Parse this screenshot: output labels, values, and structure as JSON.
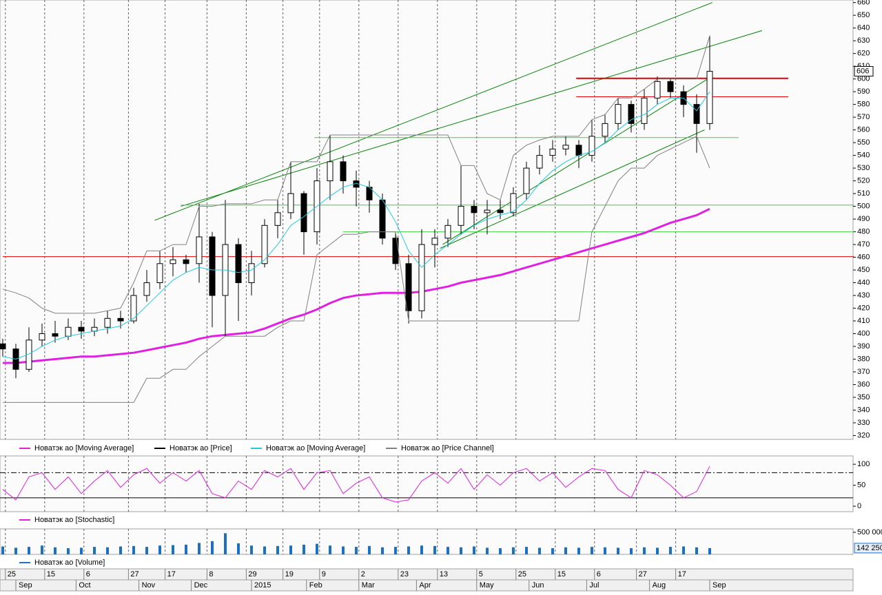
{
  "chart_data": [
    {
      "type": "candlestick",
      "x": [
        0,
        5,
        10,
        15,
        20,
        25,
        30,
        35,
        40,
        45,
        50,
        55,
        60,
        65,
        70,
        75,
        80,
        85,
        90,
        95,
        100,
        105,
        110,
        115,
        120,
        125,
        130,
        135,
        140,
        145,
        150,
        155,
        160,
        165,
        170,
        175,
        180,
        185,
        190,
        195,
        200,
        205,
        210,
        215,
        220,
        225,
        230,
        235,
        240,
        245,
        250,
        255,
        260,
        265,
        270
      ],
      "xlim": [
        0,
        325
      ],
      "ylim": [
        317,
        662
      ],
      "yticks": [
        320,
        330,
        340,
        350,
        360,
        370,
        380,
        390,
        400,
        410,
        420,
        430,
        440,
        450,
        460,
        470,
        480,
        490,
        500,
        510,
        520,
        530,
        540,
        550,
        560,
        570,
        580,
        590,
        600,
        610,
        620,
        630,
        640,
        650,
        660
      ],
      "series": [
        {
          "name": "Новатэк ао [Moving Average]",
          "color": "#e020e0",
          "values": [
            377,
            377,
            378,
            379,
            380,
            381,
            382,
            382,
            383,
            384,
            385,
            387,
            389,
            391,
            393,
            396,
            398,
            399,
            400,
            401,
            404,
            408,
            412,
            415,
            419,
            424,
            428,
            430,
            431,
            432,
            432,
            432,
            433,
            435,
            437,
            440,
            442,
            444,
            446,
            449,
            452,
            455,
            458,
            461,
            464,
            467,
            470,
            473,
            476,
            479,
            483,
            487,
            490,
            493,
            498
          ]
        },
        {
          "name": "Новатэк ао [Price]",
          "color": "#000000",
          "open": [
            392,
            388,
            372,
            395,
            400,
            398,
            405,
            402,
            405,
            412,
            410,
            430,
            440,
            455,
            458,
            455,
            476,
            430,
            470,
            440,
            455,
            485,
            495,
            510,
            480,
            520,
            535,
            520,
            515,
            505,
            475,
            455,
            418,
            470,
            475,
            485,
            500,
            495,
            497,
            495,
            510,
            530,
            540,
            545,
            548,
            540,
            555,
            565,
            580,
            565,
            585,
            598,
            590,
            580,
            565
          ],
          "high": [
            396,
            392,
            405,
            408,
            410,
            412,
            410,
            412,
            418,
            418,
            436,
            450,
            465,
            468,
            462,
            502,
            480,
            505,
            475,
            465,
            490,
            505,
            535,
            512,
            530,
            556,
            540,
            528,
            520,
            510,
            480,
            462,
            482,
            482,
            490,
            532,
            505,
            505,
            505,
            515,
            535,
            548,
            552,
            555,
            552,
            568,
            572,
            585,
            583,
            592,
            602,
            600,
            595,
            588,
            634
          ],
          "low": [
            382,
            365,
            370,
            390,
            393,
            395,
            396,
            398,
            400,
            404,
            408,
            425,
            435,
            445,
            448,
            440,
            405,
            398,
            410,
            430,
            452,
            475,
            490,
            462,
            470,
            505,
            510,
            500,
            495,
            470,
            450,
            408,
            412,
            452,
            468,
            478,
            482,
            478,
            490,
            492,
            505,
            525,
            535,
            540,
            530,
            535,
            550,
            560,
            558,
            560,
            580,
            585,
            570,
            542,
            560
          ],
          "close": [
            388,
            372,
            395,
            400,
            398,
            405,
            402,
            405,
            412,
            410,
            430,
            440,
            455,
            458,
            455,
            476,
            430,
            470,
            440,
            455,
            485,
            495,
            510,
            480,
            520,
            535,
            520,
            515,
            505,
            475,
            455,
            418,
            470,
            475,
            485,
            500,
            495,
            497,
            495,
            510,
            530,
            540,
            545,
            548,
            540,
            555,
            565,
            580,
            565,
            585,
            598,
            590,
            580,
            565,
            606
          ]
        },
        {
          "name": "Новатэк ао [Moving Average]",
          "color": "#20c8e0",
          "values": [
            382,
            380,
            384,
            390,
            395,
            398,
            400,
            402,
            404,
            406,
            412,
            422,
            432,
            442,
            448,
            452,
            450,
            450,
            448,
            450,
            458,
            470,
            485,
            492,
            500,
            508,
            515,
            518,
            515,
            505,
            488,
            465,
            452,
            462,
            470,
            478,
            485,
            490,
            493,
            496,
            505,
            518,
            528,
            535,
            540,
            543,
            550,
            560,
            568,
            572,
            580,
            585,
            585,
            575,
            590
          ]
        },
        {
          "name": "Новатэк ао [Price Channel]",
          "color": "#808080",
          "upper": [
            435,
            432,
            428,
            420,
            416,
            416,
            416,
            416,
            418,
            420,
            440,
            465,
            465,
            470,
            470,
            500,
            500,
            502,
            502,
            502,
            505,
            505,
            535,
            535,
            535,
            556,
            556,
            556,
            556,
            556,
            556,
            556,
            556,
            556,
            556,
            532,
            532,
            510,
            505,
            540,
            548,
            552,
            555,
            555,
            555,
            568,
            572,
            585,
            585,
            592,
            600,
            600,
            600,
            600,
            634
          ],
          "lower": [
            346,
            346,
            346,
            346,
            346,
            346,
            346,
            346,
            346,
            346,
            346,
            365,
            365,
            372,
            372,
            382,
            390,
            398,
            398,
            398,
            398,
            405,
            410,
            410,
            462,
            470,
            478,
            478,
            480,
            480,
            480,
            410,
            410,
            410,
            410,
            410,
            410,
            410,
            410,
            410,
            410,
            410,
            410,
            410,
            410,
            480,
            500,
            520,
            530,
            530,
            540,
            545,
            550,
            555,
            530
          ]
        }
      ],
      "lines": [
        {
          "color": "#008000",
          "width": 1,
          "x": [
            58,
            271
          ],
          "y": [
            489,
            660
          ]
        },
        {
          "color": "#008000",
          "width": 1,
          "x": [
            68,
            290
          ],
          "y": [
            500,
            638
          ]
        },
        {
          "color": "#008000",
          "width": 1,
          "x": [
            168,
            270
          ],
          "y": [
            470,
            601
          ]
        },
        {
          "color": "#008000",
          "width": 1,
          "x": [
            167,
            268
          ],
          "y": [
            467,
            560
          ]
        },
        {
          "color": "#40d040",
          "width": 1,
          "x": [
            119,
            281
          ],
          "y": [
            554,
            554
          ]
        },
        {
          "color": "#40d040",
          "width": 1,
          "x": [
            68,
            325
          ],
          "y": [
            501,
            501
          ]
        },
        {
          "color": "#40d040",
          "width": 1,
          "x": [
            130,
            325
          ],
          "y": [
            480,
            480
          ]
        },
        {
          "color": "#e00000",
          "width": 1,
          "x": [
            0,
            325
          ],
          "y": [
            460.5,
            460.5
          ]
        },
        {
          "color": "#e00000",
          "width": 2,
          "x": [
            219,
            300
          ],
          "y": [
            600.5,
            600.5
          ]
        },
        {
          "color": "#e00000",
          "width": 1,
          "x": [
            219,
            300
          ],
          "y": [
            586,
            586
          ]
        }
      ]
    },
    {
      "type": "line",
      "x": [
        0,
        5,
        10,
        15,
        20,
        25,
        30,
        35,
        40,
        45,
        50,
        55,
        60,
        65,
        70,
        75,
        80,
        85,
        90,
        95,
        100,
        105,
        110,
        115,
        120,
        125,
        130,
        135,
        140,
        145,
        150,
        155,
        160,
        165,
        170,
        175,
        180,
        185,
        190,
        195,
        200,
        205,
        210,
        215,
        220,
        225,
        230,
        235,
        240,
        245,
        250,
        255,
        260,
        265,
        270
      ],
      "xlim": [
        0,
        325
      ],
      "ylim": [
        -13,
        120
      ],
      "yticks": [
        0,
        50,
        100
      ],
      "levels": [
        20,
        80
      ],
      "series": [
        {
          "name": "Новатэк ао [Stochastic]",
          "color": "#e020e0",
          "values": [
            40,
            15,
            70,
            80,
            40,
            70,
            30,
            60,
            85,
            45,
            75,
            90,
            55,
            80,
            60,
            85,
            30,
            20,
            60,
            40,
            85,
            70,
            90,
            40,
            80,
            85,
            30,
            55,
            70,
            20,
            10,
            15,
            60,
            80,
            55,
            90,
            40,
            75,
            50,
            80,
            90,
            60,
            80,
            45,
            70,
            90,
            85,
            40,
            20,
            85,
            75,
            50,
            20,
            35,
            95
          ]
        }
      ]
    },
    {
      "type": "bar",
      "x": [
        0,
        5,
        10,
        15,
        20,
        25,
        30,
        35,
        40,
        45,
        50,
        55,
        60,
        65,
        70,
        75,
        80,
        85,
        90,
        95,
        100,
        105,
        110,
        115,
        120,
        125,
        130,
        135,
        140,
        145,
        150,
        155,
        160,
        165,
        170,
        175,
        180,
        185,
        190,
        195,
        200,
        205,
        210,
        215,
        220,
        225,
        230,
        235,
        240,
        245,
        250,
        255,
        260,
        265,
        270
      ],
      "xlim": [
        0,
        325
      ],
      "ylim": [
        0,
        578000
      ],
      "yticks": [
        {
          "value": 500000,
          "label": "500 000"
        }
      ],
      "series": [
        {
          "name": "Новатэк ао [Volume]",
          "color": "#1f6fbf",
          "values": [
            180000,
            150000,
            170000,
            200000,
            160000,
            140000,
            150000,
            170000,
            160000,
            180000,
            190000,
            170000,
            200000,
            210000,
            220000,
            260000,
            300000,
            480000,
            250000,
            200000,
            180000,
            190000,
            200000,
            220000,
            240000,
            200000,
            180000,
            170000,
            190000,
            160000,
            170000,
            180000,
            200000,
            190000,
            170000,
            160000,
            180000,
            150000,
            140000,
            160000,
            170000,
            150000,
            140000,
            160000,
            150000,
            170000,
            160000,
            150000,
            140000,
            160000,
            150000,
            170000,
            180000,
            160000,
            142250
          ],
          "last_label": {
            "value": 142250,
            "label": "142 250"
          }
        }
      ],
      "xticks": [
        {
          "value": 1,
          "label": "25"
        },
        {
          "value": 16,
          "label": "15"
        },
        {
          "value": 31,
          "label": "6"
        },
        {
          "value": 48,
          "label": "27"
        },
        {
          "value": 62,
          "label": "17"
        },
        {
          "value": 78,
          "label": "8"
        },
        {
          "value": 93,
          "label": "29"
        },
        {
          "value": 107,
          "label": "19"
        },
        {
          "value": 121,
          "label": "9"
        },
        {
          "value": 136,
          "label": "2"
        },
        {
          "value": 151,
          "label": "23"
        },
        {
          "value": 166,
          "label": "13"
        },
        {
          "value": 181,
          "label": "5"
        },
        {
          "value": 196,
          "label": "25"
        },
        {
          "value": 211,
          "label": "15"
        },
        {
          "value": 226,
          "label": "6"
        },
        {
          "value": 242,
          "label": "27"
        },
        {
          "value": 257,
          "label": "17"
        }
      ],
      "month_ticks": [
        {
          "value": 5,
          "label": "Sep"
        },
        {
          "value": 28,
          "label": "Oct"
        },
        {
          "value": 52,
          "label": "Nov"
        },
        {
          "value": 72,
          "label": "Dec"
        },
        {
          "value": 95,
          "label": "2015"
        },
        {
          "value": 116,
          "label": "Feb"
        },
        {
          "value": 136,
          "label": "Mar"
        },
        {
          "value": 158,
          "label": "Apr"
        },
        {
          "value": 181,
          "label": "May"
        },
        {
          "value": 201,
          "label": "Jun"
        },
        {
          "value": 223,
          "label": "Jul"
        },
        {
          "value": 247,
          "label": "Aug"
        },
        {
          "value": 270,
          "label": "Sep"
        }
      ]
    }
  ]
}
